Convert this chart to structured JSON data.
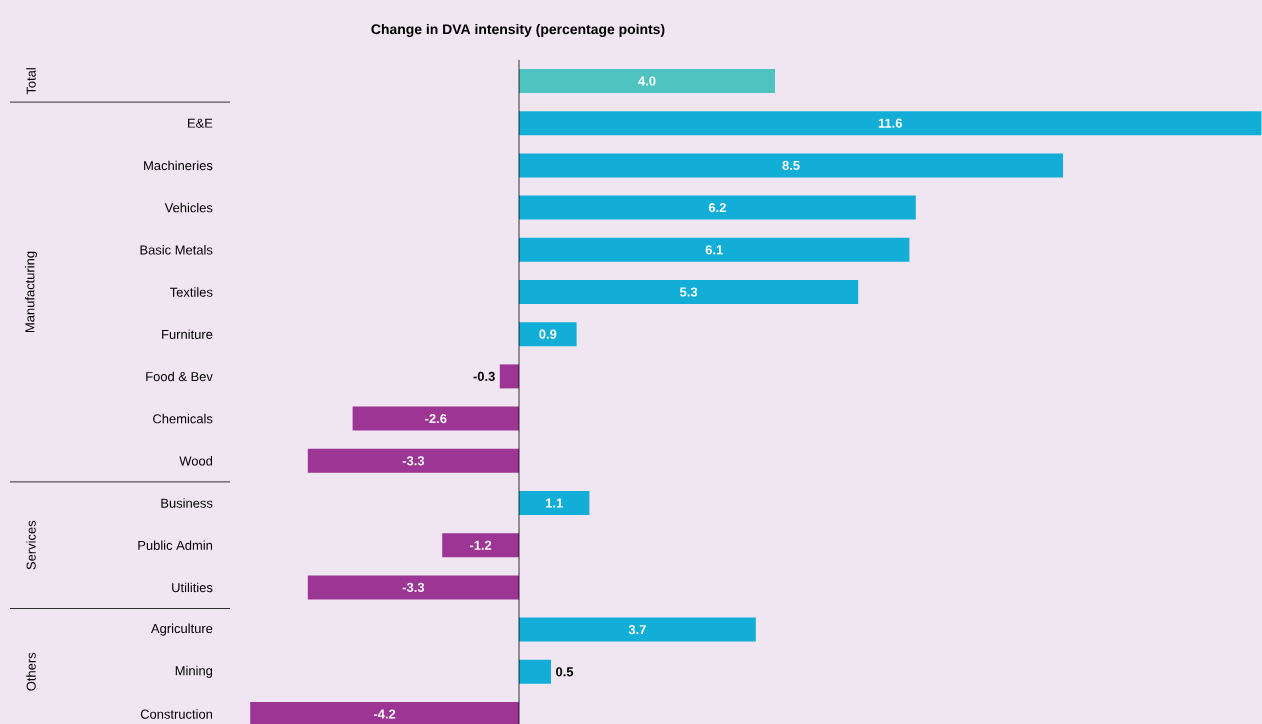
{
  "chart_data": {
    "type": "bar",
    "orientation": "horizontal",
    "title": "Change in DVA intensity (percentage points)",
    "categories": [
      null,
      "E&E",
      "Machineries",
      "Vehicles",
      "Basic Metals",
      "Textiles",
      "Furniture",
      "Food & Bev",
      "Chemicals",
      "Wood",
      "Business",
      "Public Admin",
      "Utilities",
      "Agriculture",
      "Mining",
      "Construction"
    ],
    "values": [
      4.0,
      11.6,
      8.5,
      6.2,
      6.1,
      5.3,
      0.9,
      -0.3,
      -2.6,
      -3.3,
      1.1,
      -1.2,
      -3.3,
      3.7,
      0.5,
      -4.2
    ],
    "colors": [
      "#4fc3bf",
      "#12aed8",
      "#12aed8",
      "#12aed8",
      "#12aed8",
      "#12aed8",
      "#12aed8",
      "#9c3593",
      "#9c3593",
      "#9c3593",
      "#12aed8",
      "#9c3593",
      "#9c3593",
      "#12aed8",
      "#12aed8",
      "#9c3593"
    ],
    "value_labels": [
      "4.0",
      "11.6",
      "8.5",
      "6.2",
      "6.1",
      "5.3",
      "0.9",
      "-0.3",
      "-2.6",
      "-3.3",
      "1.1",
      "-1.2",
      "-3.3",
      "3.7",
      "0.5",
      "-4.2"
    ],
    "annotations": [
      "Total",
      "Manufacturing",
      "Services",
      "Others"
    ]
  }
}
